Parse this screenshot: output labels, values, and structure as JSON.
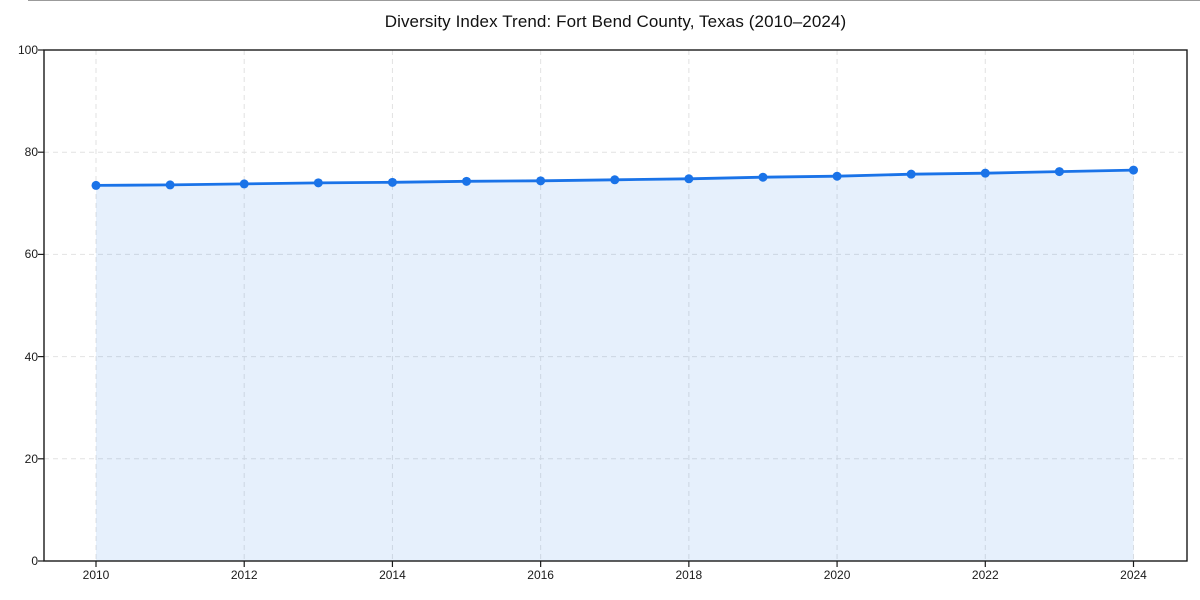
{
  "window": {
    "top_edge_line": true
  },
  "chart_data": {
    "type": "line",
    "title": "Diversity Index Trend: Fort Bend County, Texas (2010–2024)",
    "x": [
      2010,
      2011,
      2012,
      2013,
      2014,
      2015,
      2016,
      2017,
      2018,
      2019,
      2020,
      2021,
      2022,
      2023,
      2024
    ],
    "series": [
      {
        "name": "Diversity Index",
        "values": [
          73.5,
          73.6,
          73.8,
          74.0,
          74.1,
          74.3,
          74.4,
          74.6,
          74.8,
          75.1,
          75.3,
          75.7,
          75.9,
          76.2,
          76.5
        ]
      }
    ],
    "x_tick_years": [
      2010,
      2012,
      2014,
      2016,
      2018,
      2020,
      2022,
      2024
    ],
    "x_tick_labels": [
      "2010",
      "2012",
      "2014",
      "2016",
      "2018",
      "2020",
      "2022",
      "2024"
    ],
    "y_ticks": [
      0,
      20,
      40,
      60,
      80,
      100
    ],
    "y_tick_labels": [
      "0",
      "20",
      "40",
      "60",
      "80",
      "100"
    ],
    "ylim": [
      0,
      100
    ],
    "xlabel": "",
    "ylabel": "",
    "grid": "dashed",
    "legend": "none",
    "area_fill": true,
    "markers": true,
    "colors": {
      "line": "#1a73e8",
      "marker": "#1a73e8",
      "area": "rgba(26,115,232,0.11)",
      "grid": "#e2e2e2",
      "spine": "#1a1a1a",
      "tick_label": "#1a1a1a",
      "title": "#111111"
    }
  }
}
